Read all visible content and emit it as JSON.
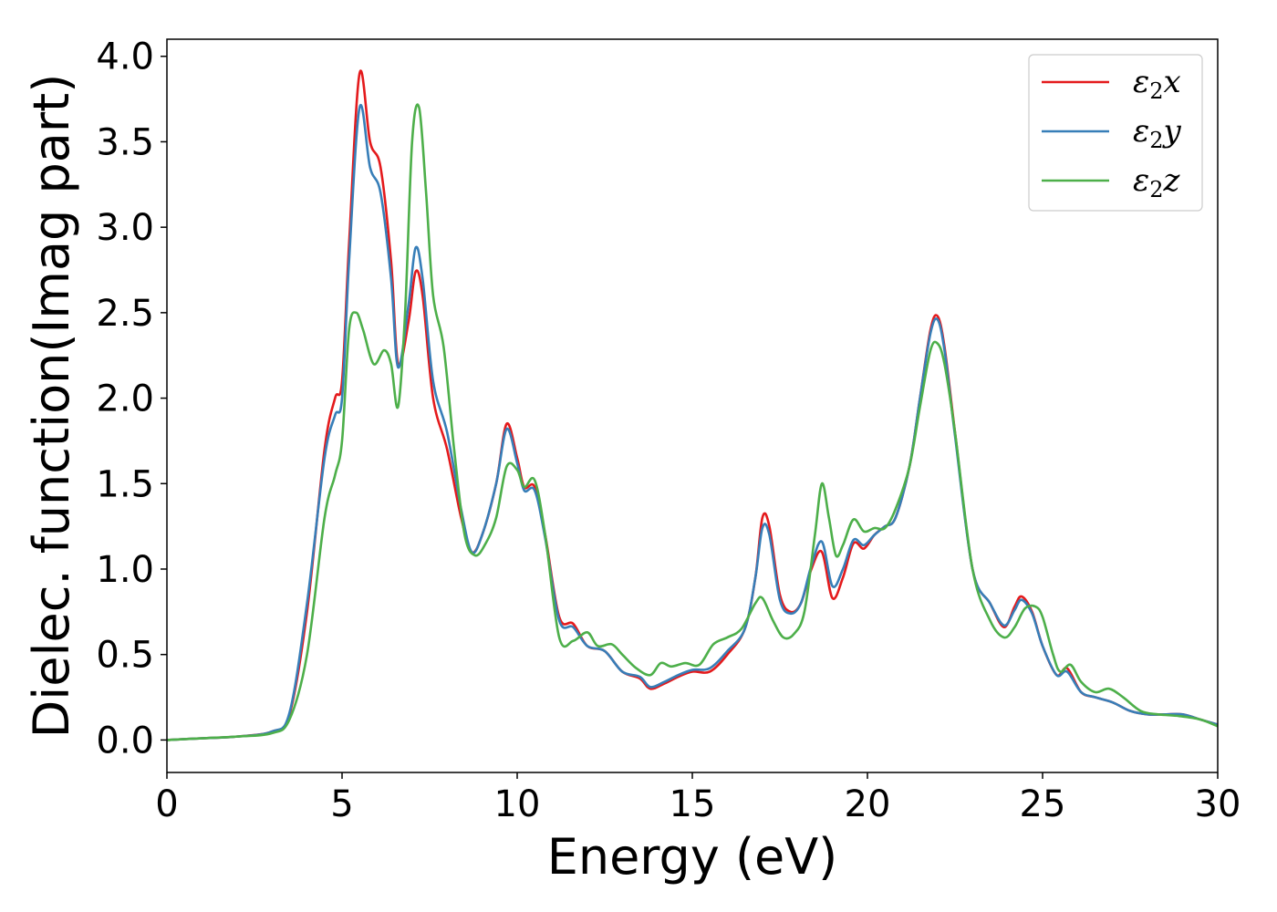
{
  "chart_data": {
    "type": "line",
    "title": "",
    "xlabel": "Energy (eV)",
    "ylabel": "Dielec. function(Imag part)",
    "xlim": [
      0,
      30
    ],
    "ylim": [
      -0.19,
      4.1
    ],
    "xticks": [
      0,
      5,
      10,
      15,
      20,
      25,
      30
    ],
    "xtick_labels": [
      "0",
      "5",
      "10",
      "15",
      "20",
      "25",
      "30"
    ],
    "yticks": [
      0,
      0.5,
      1,
      1.5,
      2,
      2.5,
      3,
      3.5,
      4
    ],
    "ytick_labels": [
      "0.0",
      "0.5",
      "1.0",
      "1.5",
      "2.0",
      "2.5",
      "3.0",
      "3.5",
      "4.0"
    ],
    "grid": false,
    "legend_position": "top-right",
    "series": [
      {
        "name": "ε2x",
        "name_base": "ε",
        "name_sub": "2",
        "name_suffix": "x",
        "color": "#e41a1c",
        "x": [
          0,
          1,
          2,
          3,
          3.5,
          4,
          4.5,
          4.8,
          5.0,
          5.2,
          5.5,
          5.8,
          6.1,
          6.4,
          6.6,
          6.9,
          7.1,
          7.3,
          7.6,
          8.0,
          8.4,
          8.7,
          9.0,
          9.4,
          9.7,
          10.0,
          10.2,
          10.5,
          10.8,
          11.2,
          11.6,
          12.0,
          12.5,
          13.0,
          13.5,
          13.8,
          14.2,
          14.6,
          15.0,
          15.5,
          16.0,
          16.5,
          16.8,
          17.0,
          17.2,
          17.5,
          17.8,
          18.1,
          18.4,
          18.7,
          19.0,
          19.3,
          19.6,
          19.9,
          20.2,
          20.5,
          20.8,
          21.2,
          21.5,
          21.8,
          22.0,
          22.2,
          22.5,
          23.0,
          23.5,
          23.9,
          24.2,
          24.4,
          24.7,
          25.0,
          25.4,
          25.7,
          26.1,
          26.5,
          27.0,
          27.5,
          28.0,
          28.5,
          29.0,
          29.5,
          30.0
        ],
        "y": [
          0.0,
          0.01,
          0.02,
          0.05,
          0.15,
          0.75,
          1.7,
          2.0,
          2.1,
          2.9,
          3.9,
          3.5,
          3.35,
          2.8,
          2.2,
          2.45,
          2.74,
          2.6,
          2.0,
          1.7,
          1.3,
          1.1,
          1.2,
          1.5,
          1.85,
          1.65,
          1.48,
          1.48,
          1.2,
          0.72,
          0.68,
          0.55,
          0.52,
          0.4,
          0.36,
          0.3,
          0.33,
          0.37,
          0.4,
          0.4,
          0.5,
          0.65,
          0.95,
          1.3,
          1.25,
          0.85,
          0.75,
          0.8,
          1.0,
          1.1,
          0.83,
          0.95,
          1.15,
          1.12,
          1.2,
          1.25,
          1.3,
          1.6,
          2.0,
          2.4,
          2.48,
          2.3,
          1.8,
          1.0,
          0.8,
          0.66,
          0.78,
          0.84,
          0.75,
          0.55,
          0.38,
          0.42,
          0.28,
          0.25,
          0.22,
          0.17,
          0.15,
          0.15,
          0.15,
          0.12,
          0.09
        ]
      },
      {
        "name": "ε2y",
        "name_base": "ε",
        "name_sub": "2",
        "name_suffix": "y",
        "color": "#377eb8",
        "x": [
          0,
          1,
          2,
          3,
          3.5,
          4,
          4.5,
          4.8,
          5.0,
          5.2,
          5.5,
          5.8,
          6.1,
          6.4,
          6.6,
          6.9,
          7.1,
          7.3,
          7.6,
          8.0,
          8.4,
          8.7,
          9.0,
          9.4,
          9.7,
          10.0,
          10.2,
          10.5,
          10.8,
          11.2,
          11.6,
          12.0,
          12.5,
          13.0,
          13.5,
          13.8,
          14.2,
          14.6,
          15.0,
          15.5,
          16.0,
          16.5,
          16.8,
          17.0,
          17.2,
          17.5,
          17.8,
          18.1,
          18.4,
          18.7,
          19.0,
          19.3,
          19.6,
          19.9,
          20.2,
          20.5,
          20.8,
          21.2,
          21.5,
          21.8,
          22.0,
          22.2,
          22.5,
          23.0,
          23.5,
          23.9,
          24.2,
          24.4,
          24.7,
          25.0,
          25.4,
          25.7,
          26.1,
          26.5,
          27.0,
          27.5,
          28.0,
          28.5,
          29.0,
          29.5,
          30.0
        ],
        "y": [
          0.0,
          0.01,
          0.02,
          0.05,
          0.16,
          0.8,
          1.65,
          1.9,
          2.0,
          2.8,
          3.7,
          3.35,
          3.2,
          2.7,
          2.18,
          2.55,
          2.88,
          2.7,
          2.1,
          1.8,
          1.35,
          1.1,
          1.2,
          1.5,
          1.82,
          1.62,
          1.46,
          1.46,
          1.18,
          0.7,
          0.66,
          0.55,
          0.52,
          0.4,
          0.37,
          0.31,
          0.34,
          0.38,
          0.41,
          0.42,
          0.52,
          0.65,
          0.95,
          1.24,
          1.2,
          0.82,
          0.74,
          0.8,
          1.02,
          1.16,
          0.9,
          1.0,
          1.17,
          1.14,
          1.2,
          1.25,
          1.3,
          1.6,
          2.0,
          2.38,
          2.46,
          2.28,
          1.78,
          1.0,
          0.8,
          0.67,
          0.76,
          0.82,
          0.74,
          0.55,
          0.38,
          0.4,
          0.28,
          0.25,
          0.22,
          0.17,
          0.15,
          0.15,
          0.15,
          0.12,
          0.09
        ]
      },
      {
        "name": "ε2z",
        "name_base": "ε",
        "name_sub": "2",
        "name_suffix": "z",
        "color": "#4daf4a",
        "x": [
          0,
          1,
          2,
          3,
          3.5,
          4,
          4.5,
          4.8,
          5.0,
          5.2,
          5.4,
          5.6,
          5.9,
          6.2,
          6.4,
          6.6,
          6.8,
          7.0,
          7.2,
          7.4,
          7.6,
          7.9,
          8.2,
          8.5,
          8.8,
          9.1,
          9.4,
          9.7,
          10.0,
          10.2,
          10.5,
          10.8,
          11.2,
          11.6,
          12.0,
          12.3,
          12.7,
          13.0,
          13.4,
          13.8,
          14.1,
          14.4,
          14.8,
          15.2,
          15.6,
          16.0,
          16.4,
          16.8,
          17.0,
          17.3,
          17.6,
          17.9,
          18.2,
          18.5,
          18.7,
          18.9,
          19.1,
          19.3,
          19.6,
          19.9,
          20.2,
          20.5,
          20.8,
          21.2,
          21.5,
          21.8,
          22.0,
          22.2,
          22.5,
          23.0,
          23.5,
          23.9,
          24.2,
          24.5,
          24.8,
          25.0,
          25.3,
          25.5,
          25.8,
          26.1,
          26.5,
          26.9,
          27.3,
          27.8,
          28.3,
          28.9,
          29.5,
          30.0
        ],
        "y": [
          0.0,
          0.01,
          0.02,
          0.04,
          0.12,
          0.5,
          1.3,
          1.55,
          1.75,
          2.4,
          2.5,
          2.4,
          2.2,
          2.28,
          2.2,
          1.95,
          2.5,
          3.5,
          3.7,
          3.2,
          2.6,
          2.3,
          1.7,
          1.2,
          1.08,
          1.15,
          1.3,
          1.6,
          1.58,
          1.48,
          1.52,
          1.2,
          0.6,
          0.58,
          0.63,
          0.55,
          0.56,
          0.5,
          0.42,
          0.38,
          0.45,
          0.43,
          0.45,
          0.44,
          0.56,
          0.6,
          0.65,
          0.8,
          0.83,
          0.7,
          0.6,
          0.62,
          0.75,
          1.2,
          1.5,
          1.3,
          1.08,
          1.14,
          1.29,
          1.22,
          1.24,
          1.24,
          1.35,
          1.6,
          1.95,
          2.28,
          2.32,
          2.2,
          1.8,
          1.0,
          0.7,
          0.6,
          0.66,
          0.77,
          0.78,
          0.72,
          0.5,
          0.4,
          0.44,
          0.34,
          0.28,
          0.3,
          0.25,
          0.17,
          0.15,
          0.14,
          0.12,
          0.08
        ]
      }
    ]
  }
}
